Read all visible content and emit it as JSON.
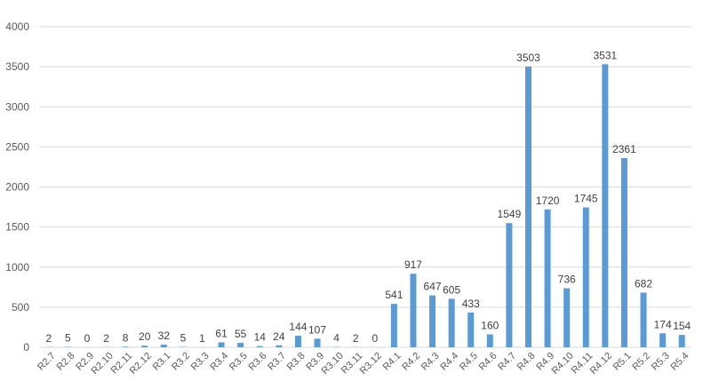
{
  "chart_data": {
    "type": "bar",
    "title": "",
    "xlabel": "",
    "ylabel": "",
    "ylim": [
      0,
      4000
    ],
    "yticks": [
      0,
      500,
      1000,
      1500,
      2000,
      2500,
      3000,
      3500,
      4000
    ],
    "grid": true,
    "legend": "none",
    "bar_color": "#5b9bd5",
    "categories": [
      "R2.7",
      "R2.8",
      "R2.9",
      "R2.10",
      "R2.11",
      "R2.12",
      "R3.1",
      "R3.2",
      "R3.3",
      "R3.4",
      "R3.5",
      "R3.6",
      "R3.7",
      "R3.8",
      "R3.9",
      "R3.10",
      "R3.11",
      "R3.12",
      "R4.1",
      "R4.2",
      "R4.3",
      "R4.4",
      "R4.5",
      "R4.6",
      "R4.7",
      "R4.8",
      "R4.9",
      "R4.10",
      "R4.11",
      "R4.12",
      "R5.1",
      "R5.2",
      "R5.3",
      "R5.4"
    ],
    "values": [
      2,
      5,
      0,
      2,
      8,
      20,
      32,
      5,
      1,
      61,
      55,
      14,
      24,
      144,
      107,
      4,
      2,
      0,
      541,
      917,
      647,
      605,
      433,
      160,
      1549,
      3503,
      1720,
      736,
      1745,
      3531,
      2361,
      682,
      174,
      154
    ]
  }
}
